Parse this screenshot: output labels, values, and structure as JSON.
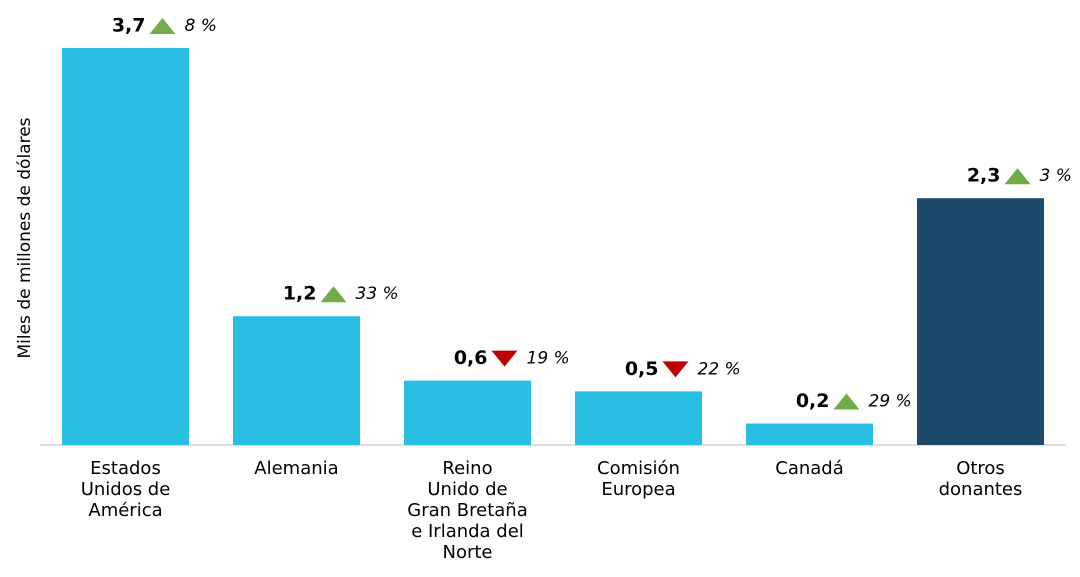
{
  "chart_data": {
    "type": "bar",
    "y_label": "Miles de millones de dólares",
    "categories": [
      "Estados\nUnidos de\nAmérica",
      "Alemania",
      "Reino\nUnido de\nGran Bretaña\ne Irlanda del\nNorte",
      "Comisión\nEuropea",
      "Canadá",
      "Otros\ndonantes"
    ],
    "values": [
      3.7,
      1.2,
      0.6,
      0.5,
      0.2,
      2.3
    ],
    "value_labels": [
      "3,7",
      "1,2",
      "0,6",
      "0,5",
      "0,2",
      "2,3"
    ],
    "changes": [
      8,
      33,
      -19,
      -22,
      29,
      3
    ],
    "change_labels": [
      "8 %",
      "33 %",
      "19 %",
      "22 %",
      "29 %",
      "3 %"
    ],
    "colors": [
      "#29bfe2",
      "#29bfe2",
      "#29bfe2",
      "#29bfe2",
      "#29bfe2",
      "#1d4a6b"
    ],
    "up_color": "#70ad47",
    "down_color": "#c00000",
    "ylim": [
      0,
      3.7
    ]
  }
}
